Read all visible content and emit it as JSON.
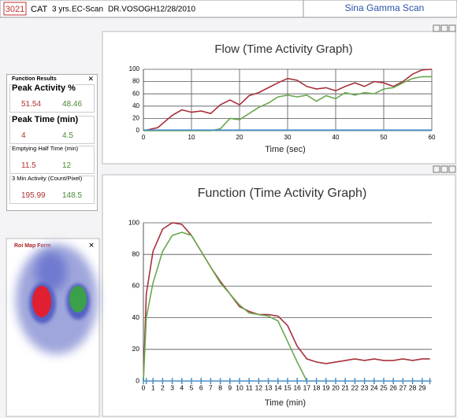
{
  "header": {
    "id": "3021",
    "species": "CAT",
    "age": "3 yrs.",
    "study": "EC-Scan",
    "doctor": "DR.VOSOGH",
    "date": "12/28/2010",
    "app": "Sina Gamma Scan"
  },
  "function_results": {
    "title": "Function Results",
    "rows": [
      {
        "label": "Peak Activity %",
        "left": "51.54",
        "right": "48.46"
      },
      {
        "label": "Peak Time (min)",
        "left": "4",
        "right": "4.5"
      },
      {
        "label": "Emptying Half Time (min)",
        "left": "11.5",
        "right": "12"
      },
      {
        "label": "3 Min Activity (Count/Pixel)",
        "left": "195.99",
        "right": "148.5"
      }
    ]
  },
  "roi_map": {
    "title": "Roi Map Form"
  },
  "chart_data": [
    {
      "type": "line",
      "title": "Flow (Time Activity Graph)",
      "x_label": "Time (sec)",
      "grid": "both",
      "x": [
        0,
        3,
        6,
        8,
        10,
        12,
        14,
        16,
        18,
        20,
        22,
        24,
        26,
        28,
        30,
        32,
        34,
        36,
        38,
        40,
        42,
        44,
        46,
        48,
        50,
        52,
        54,
        56,
        58,
        60
      ],
      "xlim": [
        0,
        60
      ],
      "xticks": [
        0,
        10,
        20,
        30,
        40,
        50,
        60
      ],
      "ylim": [
        0,
        100
      ],
      "yticks": [
        0,
        20,
        40,
        60,
        80,
        100
      ],
      "series": [
        {
          "color": "#a8303c",
          "values": [
            0,
            5,
            25,
            34,
            30,
            32,
            28,
            42,
            50,
            42,
            57,
            62,
            70,
            78,
            85,
            82,
            72,
            68,
            70,
            65,
            72,
            78,
            72,
            80,
            78,
            72,
            80,
            92,
            99,
            100
          ]
        },
        {
          "color": "#6aa84f",
          "values": [
            0,
            0,
            0,
            0,
            0,
            0,
            0,
            3,
            20,
            18,
            28,
            38,
            45,
            55,
            58,
            55,
            58,
            48,
            57,
            52,
            62,
            58,
            62,
            60,
            68,
            70,
            78,
            85,
            88,
            88
          ]
        },
        {
          "color": "#4a90c8",
          "values": [
            1,
            1,
            1,
            1,
            1,
            1,
            1,
            1,
            1,
            1,
            1,
            1,
            1,
            1,
            1,
            1,
            1,
            1,
            1,
            1,
            1,
            1,
            1,
            1,
            1,
            1,
            1,
            1,
            1,
            1
          ]
        }
      ]
    },
    {
      "type": "line",
      "title": "Function (Time Activity Graph)",
      "x_label": "Time (min)",
      "grid": "horizontal",
      "x": [
        0,
        0.3,
        1,
        2,
        3,
        4,
        5,
        6,
        7,
        8,
        9,
        10,
        11,
        12,
        13,
        14,
        15,
        16,
        17,
        18,
        19,
        20,
        21,
        22,
        23,
        24,
        25,
        26,
        27,
        28,
        29,
        29.8
      ],
      "xlim": [
        0,
        30
      ],
      "xticks": [
        0,
        1,
        2,
        3,
        4,
        5,
        6,
        7,
        8,
        9,
        10,
        11,
        12,
        13,
        14,
        15,
        16,
        17,
        18,
        19,
        20,
        21,
        22,
        23,
        24,
        25,
        26,
        27,
        28,
        29
      ],
      "ylim": [
        0,
        100
      ],
      "yticks": [
        0,
        20,
        40,
        60,
        80,
        100
      ],
      "series": [
        {
          "color": "#a8303c",
          "values": [
            0,
            55,
            82,
            96,
            100,
            99,
            92,
            82,
            72,
            63,
            55,
            47,
            44,
            42,
            42,
            41,
            35,
            22,
            14,
            12,
            11,
            12,
            13,
            14,
            13,
            14,
            13,
            13,
            14,
            13,
            14,
            14
          ]
        },
        {
          "color": "#6aa84f",
          "values": [
            0,
            40,
            62,
            82,
            92,
            94,
            92,
            82,
            72,
            62,
            55,
            48,
            43,
            42,
            41,
            38,
            25,
            12,
            0,
            null,
            null,
            null,
            null,
            null,
            null,
            null,
            null,
            null,
            null,
            null,
            null,
            null
          ]
        },
        {
          "color": "#4a90c8",
          "marker": "tick",
          "values": [
            0,
            0,
            0,
            0,
            0,
            0,
            0,
            0,
            0,
            0,
            0,
            0,
            0,
            0,
            0,
            0,
            0,
            0,
            0,
            0,
            0,
            0,
            0,
            0,
            0,
            0,
            0,
            0,
            0,
            0,
            0,
            0
          ]
        }
      ]
    }
  ]
}
